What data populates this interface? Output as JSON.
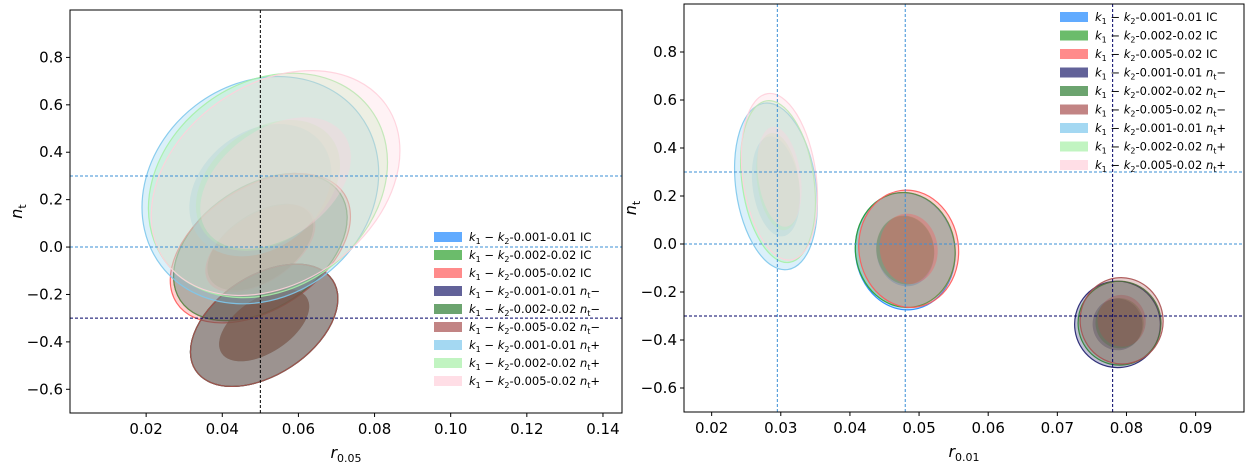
{
  "chart_data": [
    {
      "type": "contour",
      "xlabel_main": "r",
      "xlabel_sub": "0.05",
      "ylabel_main": "n",
      "ylabel_sub": "t",
      "xlim": [
        0.0,
        0.145
      ],
      "ylim": [
        -0.7,
        1.0
      ],
      "xticks": [
        0.02,
        0.04,
        0.06,
        0.08,
        0.1,
        0.12,
        0.14
      ],
      "xtick_labels": [
        "0.02",
        "0.04",
        "0.06",
        "0.08",
        "0.10",
        "0.12",
        "0.14"
      ],
      "yticks": [
        -0.6,
        -0.4,
        -0.2,
        0.0,
        0.2,
        0.4,
        0.6,
        0.8
      ],
      "ytick_labels": [
        "−0.6",
        "−0.4",
        "−0.2",
        "0.0",
        "0.2",
        "0.4",
        "0.6",
        "0.8"
      ],
      "reference_lines": [
        {
          "orientation": "vertical",
          "value": 0.05,
          "color": "#000000"
        },
        {
          "orientation": "horizontal",
          "value": 0.3,
          "color": "#3b8fd6"
        },
        {
          "orientation": "horizontal",
          "value": 0.0,
          "color": "#3b8fd6"
        },
        {
          "orientation": "horizontal",
          "value": -0.3,
          "color": "#000066"
        }
      ],
      "legend_position": "lower-right",
      "series": [
        {
          "name": "k1 − k2-0.001-0.01 IC",
          "name_parts": [
            "0.001-0.01",
            "IC"
          ],
          "color": "#1e88ff",
          "center": [
            0.05,
            0.0
          ],
          "half_length": [
            0.021,
            0.225
          ],
          "half_width": 0.016
        },
        {
          "name": "k1 − k2-0.002-0.02 IC",
          "name_parts": [
            "0.002-0.02",
            "IC"
          ],
          "color": "#2ca02c",
          "center": [
            0.05,
            0.0
          ],
          "half_length": [
            0.021,
            0.225
          ],
          "half_width": 0.016
        },
        {
          "name": "k1 − k2-0.005-0.02 IC",
          "name_parts": [
            "0.005-0.02",
            "IC"
          ],
          "color": "#ff5a5a",
          "center": [
            0.05,
            -0.005
          ],
          "half_length": [
            0.022,
            0.23
          ],
          "half_width": 0.016
        },
        {
          "name": "k1 − k2-0.001-0.01 nt−",
          "name_parts": [
            "0.001-0.01",
            "nt−"
          ],
          "color": "#1f1f6e",
          "center": [
            0.051,
            -0.33
          ],
          "half_length": [
            0.018,
            0.19
          ],
          "half_width": 0.013
        },
        {
          "name": "k1 − k2-0.002-0.02 nt−",
          "name_parts": [
            "0.002-0.02",
            "nt−"
          ],
          "color": "#2e7d32",
          "center": [
            0.051,
            -0.33
          ],
          "half_length": [
            0.018,
            0.19
          ],
          "half_width": 0.013
        },
        {
          "name": "k1 − k2-0.005-0.02 nt−",
          "name_parts": [
            "0.005-0.02",
            "nt−"
          ],
          "color": "#a85050",
          "center": [
            0.051,
            -0.33
          ],
          "half_length": [
            0.018,
            0.19
          ],
          "half_width": 0.013
        },
        {
          "name": "k1 − k2-0.001-0.01 nt+",
          "name_parts": [
            "0.001-0.01",
            "nt+"
          ],
          "color": "#7ec8ec",
          "center": [
            0.05,
            0.24
          ],
          "half_length": [
            0.026,
            0.32
          ],
          "half_width": 0.028
        },
        {
          "name": "k1 − k2-0.002-0.02 nt+",
          "name_parts": [
            "0.002-0.02",
            "nt+"
          ],
          "color": "#a6f0a6",
          "center": [
            0.052,
            0.26
          ],
          "half_length": [
            0.027,
            0.32
          ],
          "half_width": 0.027
        },
        {
          "name": "k1 − k2-0.005-0.02 nt+",
          "name_parts": [
            "0.005-0.02",
            "nt+"
          ],
          "color": "#ffd0dc",
          "center": [
            0.054,
            0.27
          ],
          "half_length": [
            0.029,
            0.33
          ],
          "half_width": 0.026
        }
      ]
    },
    {
      "type": "contour",
      "xlabel_main": "r",
      "xlabel_sub": "0.01",
      "ylabel_main": "n",
      "ylabel_sub": "t",
      "xlim": [
        0.016,
        0.097
      ],
      "ylim": [
        -0.7,
        1.0
      ],
      "xticks": [
        0.02,
        0.03,
        0.04,
        0.05,
        0.06,
        0.07,
        0.08,
        0.09
      ],
      "xtick_labels": [
        "0.02",
        "0.03",
        "0.04",
        "0.05",
        "0.06",
        "0.07",
        "0.08",
        "0.09"
      ],
      "yticks": [
        -0.6,
        -0.4,
        -0.2,
        0.0,
        0.2,
        0.4,
        0.6,
        0.8
      ],
      "ytick_labels": [
        "−0.6",
        "−0.4",
        "−0.2",
        "0.0",
        "0.2",
        "0.4",
        "0.6",
        "0.8"
      ],
      "reference_lines": [
        {
          "orientation": "vertical",
          "value": 0.0295,
          "color": "#3b8fd6"
        },
        {
          "orientation": "vertical",
          "value": 0.048,
          "color": "#3b8fd6"
        },
        {
          "orientation": "vertical",
          "value": 0.078,
          "color": "#000066"
        },
        {
          "orientation": "horizontal",
          "value": 0.3,
          "color": "#3b8fd6"
        },
        {
          "orientation": "horizontal",
          "value": 0.0,
          "color": "#3b8fd6"
        },
        {
          "orientation": "horizontal",
          "value": -0.3,
          "color": "#000066"
        }
      ],
      "legend_position": "upper-right",
      "series": [
        {
          "name": "k1 − k2-0.001-0.01 IC",
          "name_parts": [
            "0.001-0.01",
            "IC"
          ],
          "color": "#1e88ff",
          "center": [
            0.048,
            -0.03
          ],
          "radius": [
            0.0072,
            0.245
          ]
        },
        {
          "name": "k1 − k2-0.002-0.02 IC",
          "name_parts": [
            "0.002-0.02",
            "IC"
          ],
          "color": "#2ca02c",
          "center": [
            0.048,
            -0.025
          ],
          "radius": [
            0.0072,
            0.24
          ]
        },
        {
          "name": "k1 − k2-0.005-0.02 IC",
          "name_parts": [
            "0.005-0.02",
            "IC"
          ],
          "color": "#ff5a5a",
          "center": [
            0.0485,
            -0.02
          ],
          "radius": [
            0.0072,
            0.245
          ]
        },
        {
          "name": "k1 − k2-0.001-0.01 nt−",
          "name_parts": [
            "0.001-0.01",
            "nt−"
          ],
          "color": "#1f1f6e",
          "center": [
            0.0787,
            -0.335
          ],
          "radius": [
            0.0062,
            0.18
          ]
        },
        {
          "name": "k1 − k2-0.002-0.02 nt−",
          "name_parts": [
            "0.002-0.02",
            "nt−"
          ],
          "color": "#2e7d32",
          "center": [
            0.079,
            -0.33
          ],
          "radius": [
            0.006,
            0.175
          ]
        },
        {
          "name": "k1 − k2-0.005-0.02 nt−",
          "name_parts": [
            "0.005-0.02",
            "nt−"
          ],
          "color": "#a85050",
          "center": [
            0.0793,
            -0.32
          ],
          "radius": [
            0.006,
            0.18
          ]
        },
        {
          "name": "k1 − k2-0.001-0.01 nt+",
          "name_parts": [
            "0.001-0.01",
            "nt+"
          ],
          "color": "#7ec8ec",
          "center": [
            0.0293,
            0.24
          ],
          "radius": [
            0.0058,
            0.35
          ]
        },
        {
          "name": "k1 − k2-0.002-0.02 nt+",
          "name_parts": [
            "0.002-0.02",
            "nt+"
          ],
          "color": "#a6f0a6",
          "center": [
            0.0296,
            0.26
          ],
          "radius": [
            0.0052,
            0.34
          ]
        },
        {
          "name": "k1 − k2-0.005-0.02 nt+",
          "name_parts": [
            "0.005-0.02",
            "nt+"
          ],
          "color": "#ffd0dc",
          "center": [
            0.0298,
            0.28
          ],
          "radius": [
            0.0053,
            0.35
          ]
        }
      ]
    }
  ]
}
